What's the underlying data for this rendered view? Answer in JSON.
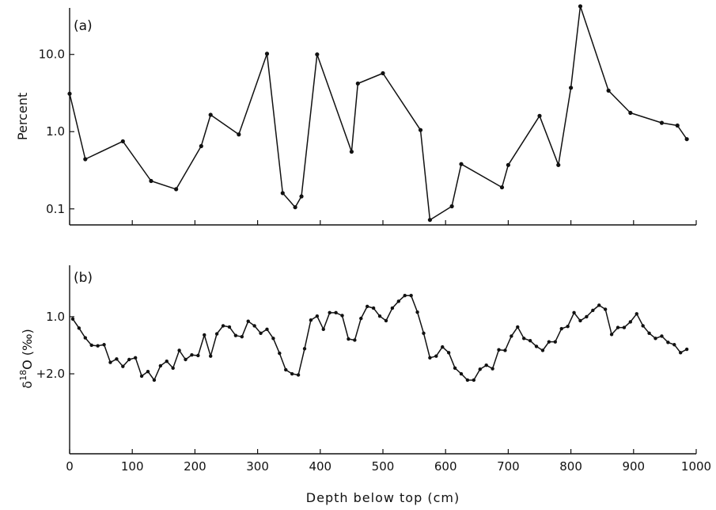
{
  "chart_data": [
    {
      "type": "line",
      "panel_label": "(a)",
      "ylabel": "Percent",
      "yscale": "log",
      "ylim": [
        0.062,
        40
      ],
      "xlim": [
        0,
        1000
      ],
      "xticks": [
        0,
        100,
        200,
        300,
        400,
        500,
        600,
        700,
        800,
        900,
        1000
      ],
      "xtick_labels_shown": false,
      "yticks": [
        {
          "value": 0.1,
          "label": "0.1"
        },
        {
          "value": 1.0,
          "label": "1.0"
        },
        {
          "value": 10.0,
          "label": "10.0"
        }
      ],
      "x": [
        0,
        25,
        85,
        130,
        170,
        210,
        225,
        270,
        315,
        340,
        360,
        370,
        395,
        450,
        460,
        500,
        560,
        575,
        610,
        625,
        690,
        700,
        750,
        780,
        800,
        815,
        860,
        895,
        945,
        970,
        985
      ],
      "y": [
        3.1,
        0.44,
        0.75,
        0.23,
        0.18,
        0.65,
        1.65,
        0.92,
        10.2,
        0.16,
        0.105,
        0.145,
        10.0,
        0.55,
        4.2,
        5.7,
        1.05,
        0.072,
        0.108,
        0.38,
        0.19,
        0.37,
        1.6,
        0.37,
        3.7,
        42,
        3.4,
        1.75,
        1.3,
        1.2,
        0.8
      ]
    },
    {
      "type": "line",
      "panel_label": "(b)",
      "ylabel_main": "δ",
      "ylabel_super": "18",
      "ylabel_rest": "O (‰)",
      "yscale": "linear",
      "inverted": true,
      "ylim": [
        3.4,
        0.1
      ],
      "xlim": [
        0,
        1000
      ],
      "xlabel": "Depth below top (cm)",
      "xticks": [
        0,
        100,
        200,
        300,
        400,
        500,
        600,
        700,
        800,
        900,
        1000
      ],
      "xtick_labels": [
        "0",
        "100",
        "200",
        "300",
        "400",
        "500",
        "600",
        "700",
        "800",
        "900",
        "1000"
      ],
      "yticks": [
        {
          "value": 1.0,
          "label": "1.0"
        },
        {
          "value": 2.0,
          "label": "+2.0"
        }
      ],
      "x": [
        5,
        15,
        25,
        35,
        45,
        55,
        65,
        75,
        85,
        95,
        105,
        115,
        125,
        135,
        145,
        155,
        165,
        175,
        185,
        195,
        205,
        215,
        225,
        235,
        245,
        255,
        265,
        275,
        285,
        295,
        305,
        315,
        325,
        335,
        345,
        355,
        365,
        375,
        385,
        395,
        405,
        415,
        425,
        435,
        445,
        455,
        465,
        475,
        485,
        495,
        505,
        515,
        525,
        535,
        545,
        555,
        565,
        575,
        585,
        595,
        605,
        615,
        625,
        635,
        645,
        655,
        665,
        675,
        685,
        695,
        705,
        715,
        725,
        735,
        745,
        755,
        765,
        775,
        785,
        795,
        805,
        815,
        825,
        835,
        845,
        855,
        865,
        875,
        885,
        895,
        905,
        915,
        925,
        935,
        945,
        955,
        965,
        975,
        985
      ],
      "y": [
        1.04,
        1.2,
        1.37,
        1.5,
        1.51,
        1.49,
        1.8,
        1.74,
        1.87,
        1.75,
        1.72,
        2.04,
        1.96,
        2.11,
        1.86,
        1.78,
        1.9,
        1.59,
        1.75,
        1.67,
        1.68,
        1.32,
        1.69,
        1.3,
        1.16,
        1.18,
        1.33,
        1.35,
        1.08,
        1.16,
        1.29,
        1.22,
        1.38,
        1.64,
        1.93,
        2.0,
        2.02,
        1.56,
        1.06,
        0.99,
        1.22,
        0.93,
        0.93,
        0.98,
        1.39,
        1.41,
        1.03,
        0.82,
        0.85,
        0.99,
        1.07,
        0.85,
        0.73,
        0.63,
        0.63,
        0.92,
        1.29,
        1.72,
        1.69,
        1.53,
        1.63,
        1.9,
        2.0,
        2.11,
        2.11,
        1.92,
        1.85,
        1.91,
        1.58,
        1.59,
        1.34,
        1.18,
        1.38,
        1.42,
        1.52,
        1.59,
        1.44,
        1.44,
        1.21,
        1.17,
        0.93,
        1.07,
        1.0,
        0.89,
        0.8,
        0.87,
        1.31,
        1.19,
        1.19,
        1.09,
        0.95,
        1.16,
        1.29,
        1.38,
        1.34,
        1.45,
        1.49,
        1.63,
        1.57
      ]
    }
  ]
}
